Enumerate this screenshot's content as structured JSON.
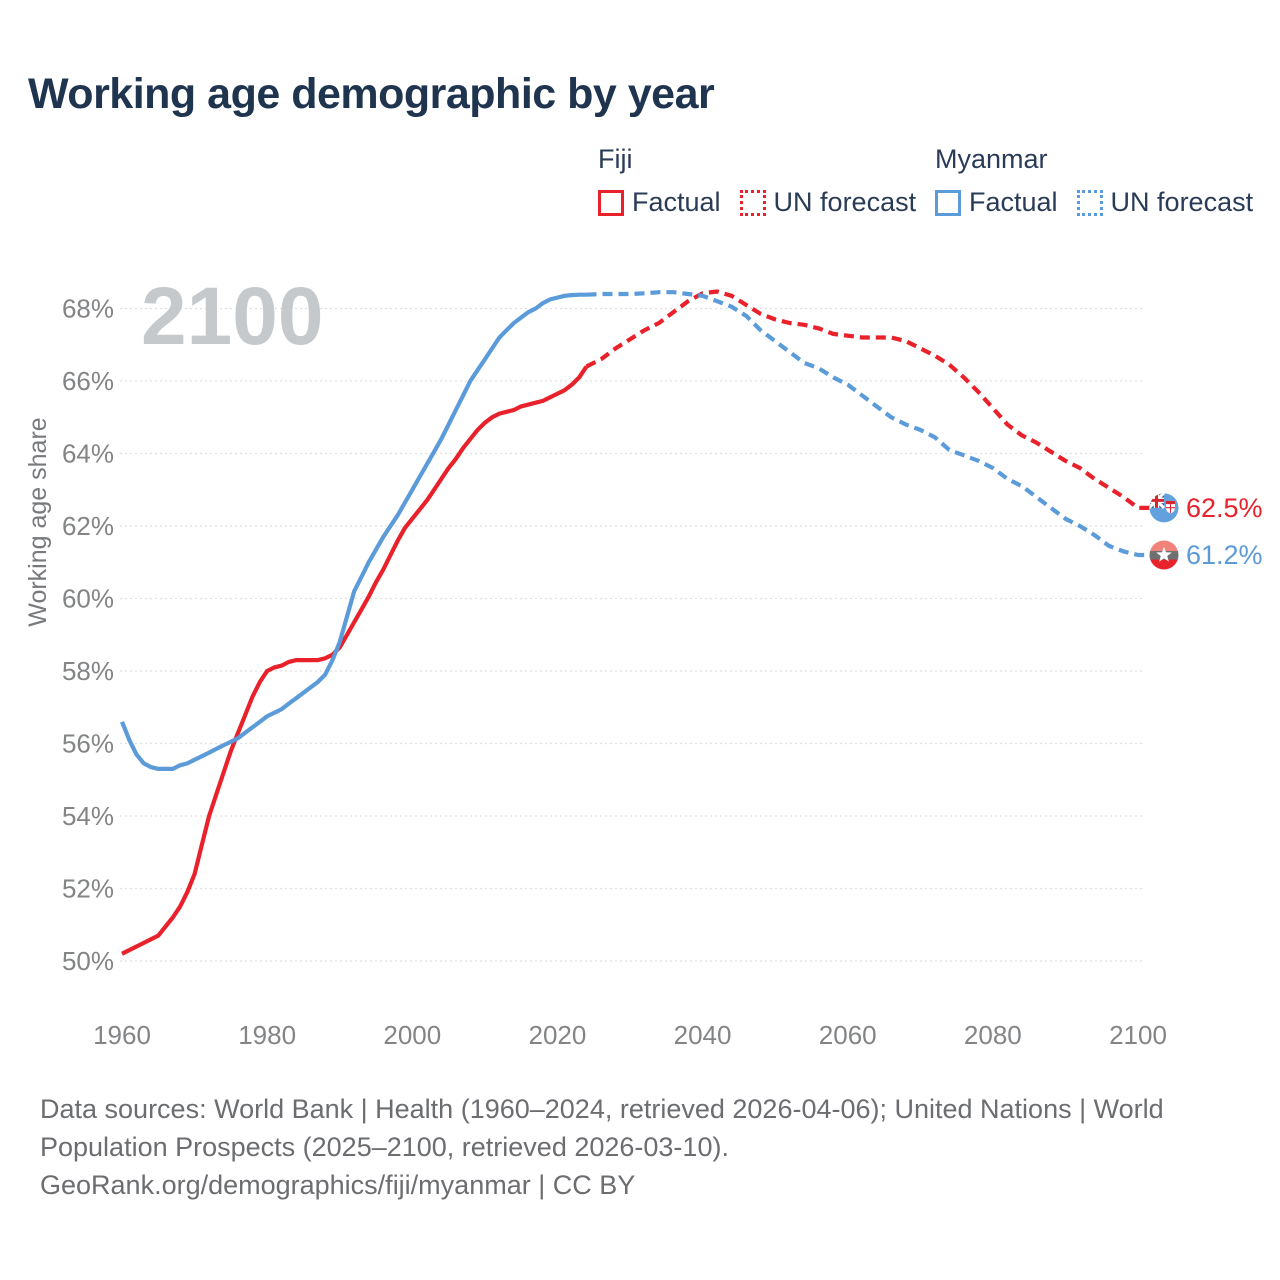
{
  "page": {
    "title": "Working age demographic by year"
  },
  "legend": {
    "groups": [
      {
        "country": "Fiji",
        "color": "#e8212b",
        "items": [
          {
            "label": "Factual",
            "style": "solid"
          },
          {
            "label": "UN forecast",
            "style": "dotted"
          }
        ]
      },
      {
        "country": "Myanmar",
        "color": "#5b9bd9",
        "items": [
          {
            "label": "Factual",
            "style": "solid"
          },
          {
            "label": "UN forecast",
            "style": "dotted"
          }
        ]
      }
    ]
  },
  "chart_data": {
    "type": "line",
    "title": "Working age demographic by year",
    "ylabel": "Working age share",
    "watermark": "2100",
    "grid": true,
    "xlim": [
      1960,
      2100
    ],
    "ylim": [
      50,
      68
    ],
    "x_ticks": [
      {
        "v": 1960,
        "label": "1960"
      },
      {
        "v": 1980,
        "label": "1980"
      },
      {
        "v": 2000,
        "label": "2000"
      },
      {
        "v": 2020,
        "label": "2020"
      },
      {
        "v": 2040,
        "label": "2040"
      },
      {
        "v": 2060,
        "label": "2060"
      },
      {
        "v": 2080,
        "label": "2080"
      },
      {
        "v": 2100,
        "label": "2100"
      }
    ],
    "y_ticks": [
      {
        "v": 50,
        "label": "50%"
      },
      {
        "v": 52,
        "label": "52%"
      },
      {
        "v": 54,
        "label": "54%"
      },
      {
        "v": 56,
        "label": "56%"
      },
      {
        "v": 58,
        "label": "58%"
      },
      {
        "v": 60,
        "label": "60%"
      },
      {
        "v": 62,
        "label": "62%"
      },
      {
        "v": 64,
        "label": "64%"
      },
      {
        "v": 66,
        "label": "66%"
      },
      {
        "v": 68,
        "label": "68%"
      }
    ],
    "series": [
      {
        "name": "Fiji Factual",
        "color": "#e8212b",
        "dash": false,
        "points": [
          [
            1960,
            50.2
          ],
          [
            1961,
            50.3
          ],
          [
            1962,
            50.4
          ],
          [
            1963,
            50.5
          ],
          [
            1964,
            50.6
          ],
          [
            1965,
            50.7
          ],
          [
            1966,
            50.95
          ],
          [
            1967,
            51.2
          ],
          [
            1968,
            51.5
          ],
          [
            1969,
            51.9
          ],
          [
            1970,
            52.4
          ],
          [
            1971,
            53.2
          ],
          [
            1972,
            54.0
          ],
          [
            1973,
            54.6
          ],
          [
            1974,
            55.2
          ],
          [
            1975,
            55.8
          ],
          [
            1976,
            56.3
          ],
          [
            1977,
            56.8
          ],
          [
            1978,
            57.3
          ],
          [
            1979,
            57.7
          ],
          [
            1980,
            58.0
          ],
          [
            1981,
            58.1
          ],
          [
            1982,
            58.15
          ],
          [
            1983,
            58.25
          ],
          [
            1984,
            58.3
          ],
          [
            1985,
            58.3
          ],
          [
            1986,
            58.3
          ],
          [
            1987,
            58.3
          ],
          [
            1988,
            58.35
          ],
          [
            1989,
            58.45
          ],
          [
            1990,
            58.65
          ],
          [
            1991,
            59.0
          ],
          [
            1992,
            59.35
          ],
          [
            1993,
            59.7
          ],
          [
            1994,
            60.05
          ],
          [
            1995,
            60.45
          ],
          [
            1996,
            60.8
          ],
          [
            1997,
            61.2
          ],
          [
            1998,
            61.6
          ],
          [
            1999,
            61.95
          ],
          [
            2000,
            62.2
          ],
          [
            2001,
            62.45
          ],
          [
            2002,
            62.7
          ],
          [
            2003,
            63.0
          ],
          [
            2004,
            63.3
          ],
          [
            2005,
            63.6
          ],
          [
            2006,
            63.85
          ],
          [
            2007,
            64.15
          ],
          [
            2008,
            64.4
          ],
          [
            2009,
            64.65
          ],
          [
            2010,
            64.85
          ],
          [
            2011,
            65.0
          ],
          [
            2012,
            65.1
          ],
          [
            2013,
            65.15
          ],
          [
            2014,
            65.2
          ],
          [
            2015,
            65.3
          ],
          [
            2016,
            65.35
          ],
          [
            2017,
            65.4
          ],
          [
            2018,
            65.45
          ],
          [
            2019,
            65.55
          ],
          [
            2020,
            65.65
          ],
          [
            2021,
            65.75
          ],
          [
            2022,
            65.9
          ],
          [
            2023,
            66.1
          ],
          [
            2024,
            66.4
          ]
        ]
      },
      {
        "name": "Fiji UN forecast",
        "color": "#e8212b",
        "dash": true,
        "points": [
          [
            2024,
            66.4
          ],
          [
            2026,
            66.6
          ],
          [
            2028,
            66.9
          ],
          [
            2030,
            67.15
          ],
          [
            2032,
            67.4
          ],
          [
            2034,
            67.6
          ],
          [
            2036,
            67.9
          ],
          [
            2038,
            68.2
          ],
          [
            2040,
            68.42
          ],
          [
            2042,
            68.47
          ],
          [
            2044,
            68.35
          ],
          [
            2046,
            68.1
          ],
          [
            2048,
            67.85
          ],
          [
            2050,
            67.7
          ],
          [
            2052,
            67.6
          ],
          [
            2054,
            67.55
          ],
          [
            2056,
            67.45
          ],
          [
            2058,
            67.3
          ],
          [
            2060,
            67.25
          ],
          [
            2062,
            67.2
          ],
          [
            2064,
            67.2
          ],
          [
            2066,
            67.2
          ],
          [
            2068,
            67.1
          ],
          [
            2070,
            66.9
          ],
          [
            2072,
            66.7
          ],
          [
            2074,
            66.45
          ],
          [
            2076,
            66.1
          ],
          [
            2078,
            65.7
          ],
          [
            2080,
            65.25
          ],
          [
            2082,
            64.8
          ],
          [
            2084,
            64.5
          ],
          [
            2086,
            64.3
          ],
          [
            2088,
            64.05
          ],
          [
            2090,
            63.8
          ],
          [
            2092,
            63.6
          ],
          [
            2094,
            63.3
          ],
          [
            2096,
            63.05
          ],
          [
            2098,
            62.8
          ],
          [
            2100,
            62.5
          ]
        ]
      },
      {
        "name": "Myanmar Factual",
        "color": "#5b9bd9",
        "dash": false,
        "points": [
          [
            1960,
            56.6
          ],
          [
            1961,
            56.1
          ],
          [
            1962,
            55.7
          ],
          [
            1963,
            55.45
          ],
          [
            1964,
            55.35
          ],
          [
            1965,
            55.3
          ],
          [
            1966,
            55.3
          ],
          [
            1967,
            55.3
          ],
          [
            1968,
            55.4
          ],
          [
            1969,
            55.45
          ],
          [
            1970,
            55.55
          ],
          [
            1971,
            55.65
          ],
          [
            1972,
            55.75
          ],
          [
            1973,
            55.85
          ],
          [
            1974,
            55.95
          ],
          [
            1975,
            56.05
          ],
          [
            1976,
            56.15
          ],
          [
            1977,
            56.3
          ],
          [
            1978,
            56.45
          ],
          [
            1979,
            56.6
          ],
          [
            1980,
            56.75
          ],
          [
            1981,
            56.85
          ],
          [
            1982,
            56.95
          ],
          [
            1983,
            57.1
          ],
          [
            1984,
            57.25
          ],
          [
            1985,
            57.4
          ],
          [
            1986,
            57.55
          ],
          [
            1987,
            57.7
          ],
          [
            1988,
            57.9
          ],
          [
            1989,
            58.3
          ],
          [
            1990,
            58.8
          ],
          [
            1991,
            59.5
          ],
          [
            1992,
            60.2
          ],
          [
            1993,
            60.6
          ],
          [
            1994,
            61.0
          ],
          [
            1995,
            61.35
          ],
          [
            1996,
            61.7
          ],
          [
            1997,
            62.0
          ],
          [
            1998,
            62.3
          ],
          [
            1999,
            62.65
          ],
          [
            2000,
            63.0
          ],
          [
            2001,
            63.35
          ],
          [
            2002,
            63.7
          ],
          [
            2003,
            64.05
          ],
          [
            2004,
            64.4
          ],
          [
            2005,
            64.8
          ],
          [
            2006,
            65.2
          ],
          [
            2007,
            65.6
          ],
          [
            2008,
            66.0
          ],
          [
            2009,
            66.3
          ],
          [
            2010,
            66.6
          ],
          [
            2011,
            66.9
          ],
          [
            2012,
            67.2
          ],
          [
            2013,
            67.4
          ],
          [
            2014,
            67.6
          ],
          [
            2015,
            67.75
          ],
          [
            2016,
            67.9
          ],
          [
            2017,
            68.0
          ],
          [
            2018,
            68.15
          ],
          [
            2019,
            68.25
          ],
          [
            2020,
            68.3
          ],
          [
            2021,
            68.35
          ],
          [
            2022,
            68.37
          ],
          [
            2023,
            68.38
          ],
          [
            2024,
            68.38
          ]
        ]
      },
      {
        "name": "Myanmar UN forecast",
        "color": "#5b9bd9",
        "dash": true,
        "points": [
          [
            2024,
            68.38
          ],
          [
            2026,
            68.4
          ],
          [
            2028,
            68.4
          ],
          [
            2030,
            68.4
          ],
          [
            2032,
            68.42
          ],
          [
            2034,
            68.45
          ],
          [
            2036,
            68.45
          ],
          [
            2038,
            68.4
          ],
          [
            2040,
            68.35
          ],
          [
            2042,
            68.2
          ],
          [
            2044,
            68.05
          ],
          [
            2046,
            67.8
          ],
          [
            2048,
            67.4
          ],
          [
            2050,
            67.1
          ],
          [
            2052,
            66.8
          ],
          [
            2054,
            66.5
          ],
          [
            2056,
            66.35
          ],
          [
            2058,
            66.1
          ],
          [
            2060,
            65.9
          ],
          [
            2062,
            65.6
          ],
          [
            2064,
            65.3
          ],
          [
            2066,
            65.0
          ],
          [
            2068,
            64.8
          ],
          [
            2070,
            64.65
          ],
          [
            2072,
            64.45
          ],
          [
            2074,
            64.1
          ],
          [
            2076,
            63.95
          ],
          [
            2078,
            63.8
          ],
          [
            2080,
            63.6
          ],
          [
            2082,
            63.3
          ],
          [
            2084,
            63.1
          ],
          [
            2086,
            62.8
          ],
          [
            2088,
            62.5
          ],
          [
            2090,
            62.2
          ],
          [
            2092,
            62.0
          ],
          [
            2094,
            61.75
          ],
          [
            2096,
            61.45
          ],
          [
            2098,
            61.3
          ],
          [
            2100,
            61.2
          ]
        ]
      }
    ],
    "end_labels": [
      {
        "series": "Fiji",
        "value": "62.5%",
        "color": "#e8212b",
        "flag": "fiji",
        "y": 62.5
      },
      {
        "series": "Myanmar",
        "value": "61.2%",
        "color": "#5b9bd9",
        "flag": "myanmar",
        "y": 61.2
      }
    ],
    "legend_position": "top-right"
  },
  "footer": {
    "lines": [
      "Data sources: World Bank | Health (1960–2024, retrieved 2026-04-06); United Nations | World",
      "Population Prospects (2025–2100, retrieved 2026-03-10).",
      "GeoRank.org/demographics/fiji/myanmar | CC BY"
    ]
  }
}
